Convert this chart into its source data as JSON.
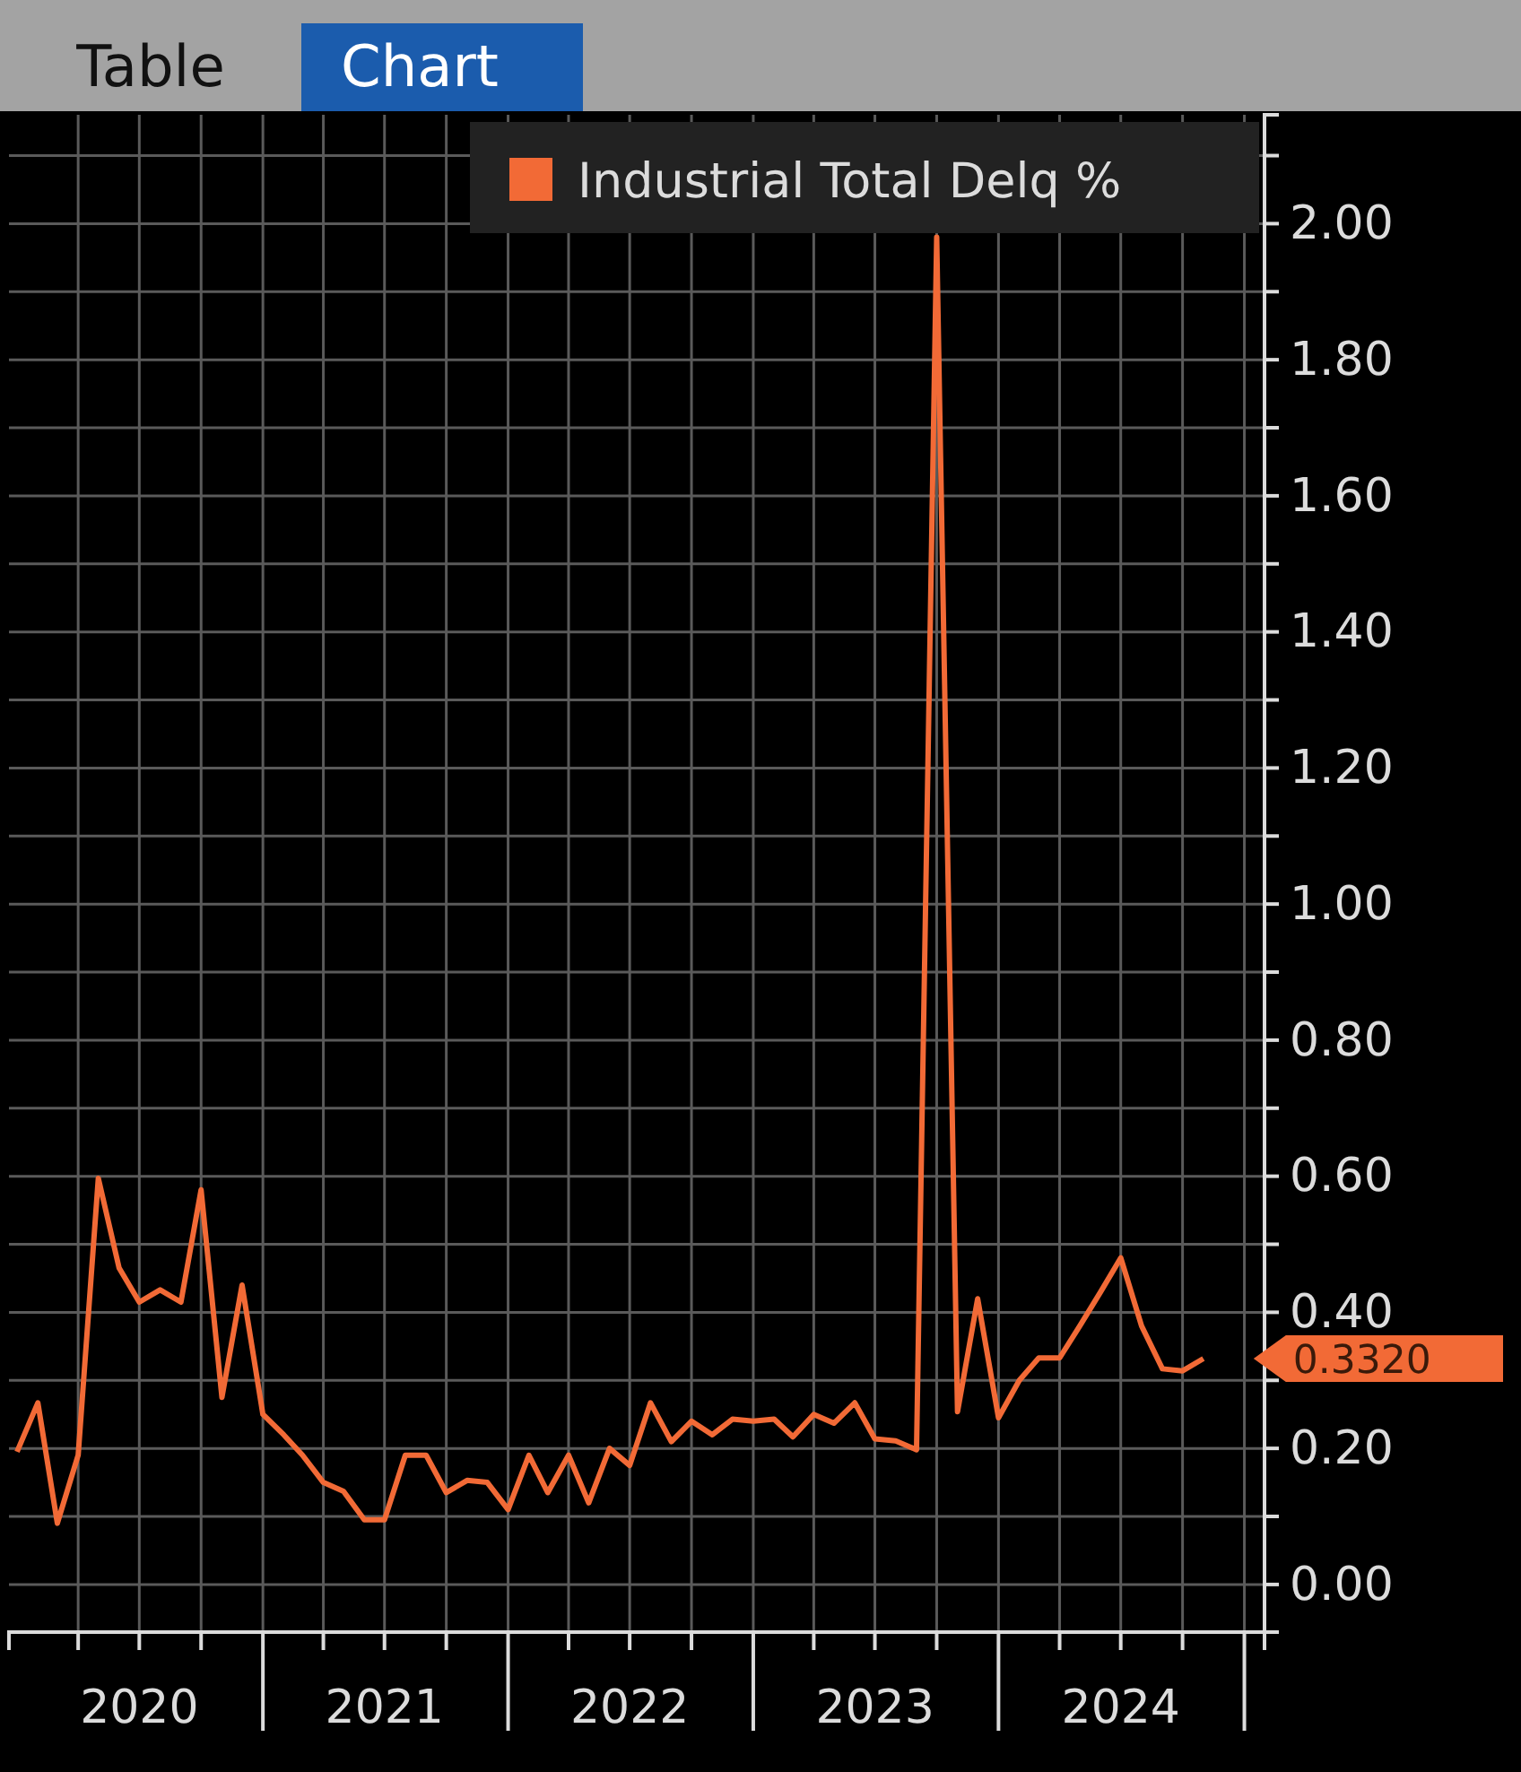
{
  "chart_data": {
    "type": "line",
    "legend": "top right",
    "grid": true,
    "marker": "none",
    "line_style": "solid",
    "annotations": [
      "Table",
      "Chart",
      {
        "text": "0.3320",
        "x": "2024-11",
        "y": 0.332
      }
    ],
    "x": [
      "2020-01",
      "2020-02",
      "2020-03",
      "2020-04",
      "2020-05",
      "2020-06",
      "2020-07",
      "2020-08",
      "2020-09",
      "2020-10",
      "2020-11",
      "2020-12",
      "2021-01",
      "2021-02",
      "2021-03",
      "2021-04",
      "2021-05",
      "2021-06",
      "2021-07",
      "2021-08",
      "2021-09",
      "2021-10",
      "2021-11",
      "2021-12",
      "2022-01",
      "2022-02",
      "2022-03",
      "2022-04",
      "2022-05",
      "2022-06",
      "2022-07",
      "2022-08",
      "2022-09",
      "2022-10",
      "2022-11",
      "2022-12",
      "2023-01",
      "2023-02",
      "2023-03",
      "2023-04",
      "2023-05",
      "2023-06",
      "2023-07",
      "2023-08",
      "2023-09",
      "2023-10",
      "2023-11",
      "2023-12",
      "2024-01",
      "2024-02",
      "2024-03",
      "2024-04",
      "2024-05",
      "2024-06",
      "2024-07",
      "2024-08",
      "2024-09",
      "2024-10",
      "2024-11"
    ],
    "series": [
      {
        "name": "Industrial Total Delq %",
        "color": "#f26a36",
        "values": [
          0.195,
          0.267,
          0.09,
          0.19,
          0.597,
          0.465,
          0.415,
          0.433,
          0.415,
          0.58,
          0.275,
          0.44,
          0.25,
          0.22,
          0.19,
          0.15,
          0.137,
          0.095,
          0.095,
          0.19,
          0.19,
          0.135,
          0.153,
          0.15,
          0.11,
          0.19,
          0.135,
          0.19,
          0.12,
          0.2,
          0.175,
          0.267,
          0.21,
          0.24,
          0.22,
          0.243,
          0.24,
          0.243,
          0.217,
          0.25,
          0.237,
          0.267,
          0.214,
          0.211,
          0.198,
          1.98,
          0.254,
          0.42,
          0.245,
          0.3,
          0.333,
          0.333,
          0.38,
          0.43,
          0.48,
          0.38,
          0.317,
          0.314,
          0.332
        ]
      }
    ],
    "xlim": [
      "2019-12-20",
      "2025-01-31"
    ],
    "xticks": [
      {
        "value": "2020-04-01",
        "label": null
      },
      {
        "value": "2020-07-01",
        "label": "2020"
      },
      {
        "value": "2020-10-01",
        "label": null
      },
      {
        "value": "2021-01-01",
        "label": null
      },
      {
        "value": "2021-04-01",
        "label": null
      },
      {
        "value": "2021-07-01",
        "label": "2021"
      },
      {
        "value": "2021-10-01",
        "label": null
      },
      {
        "value": "2022-01-01",
        "label": null
      },
      {
        "value": "2022-04-01",
        "label": null
      },
      {
        "value": "2022-07-01",
        "label": "2022"
      },
      {
        "value": "2022-10-01",
        "label": null
      },
      {
        "value": "2023-01-01",
        "label": null
      },
      {
        "value": "2023-04-01",
        "label": null
      },
      {
        "value": "2023-07-01",
        "label": "2023"
      },
      {
        "value": "2023-10-01",
        "label": null
      },
      {
        "value": "2024-01-01",
        "label": null
      },
      {
        "value": "2024-04-01",
        "label": null
      },
      {
        "value": "2024-07-01",
        "label": "2024"
      },
      {
        "value": "2024-10-01",
        "label": null
      },
      {
        "value": "2025-01-01",
        "label": null
      }
    ],
    "ylim": [
      -0.07,
      2.16
    ],
    "yticks": [
      {
        "value": 0,
        "label": "0.00"
      },
      {
        "value": 0.1,
        "label": null
      },
      {
        "value": 0.2,
        "label": "0.20"
      },
      {
        "value": 0.3,
        "label": null
      },
      {
        "value": 0.4,
        "label": "0.40"
      },
      {
        "value": 0.5,
        "label": null
      },
      {
        "value": 0.6,
        "label": "0.60"
      },
      {
        "value": 0.7,
        "label": null
      },
      {
        "value": 0.8,
        "label": "0.80"
      },
      {
        "value": 0.9,
        "label": null
      },
      {
        "value": 1,
        "label": "1.00"
      },
      {
        "value": 1.1,
        "label": null
      },
      {
        "value": 1.2,
        "label": "1.20"
      },
      {
        "value": 1.3,
        "label": null
      },
      {
        "value": 1.4,
        "label": "1.40"
      },
      {
        "value": 1.5,
        "label": null
      },
      {
        "value": 1.6,
        "label": "1.60"
      },
      {
        "value": 1.7,
        "label": null
      },
      {
        "value": 1.8,
        "label": "1.80"
      },
      {
        "value": 1.9,
        "label": null
      },
      {
        "value": 2,
        "label": "2.00"
      },
      {
        "value": 2.1,
        "label": null
      }
    ]
  }
}
